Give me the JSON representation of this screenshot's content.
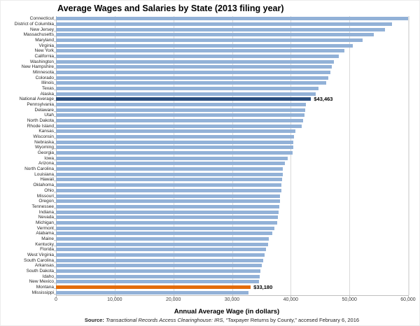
{
  "title": "Average Wages and Salaries by State (2013 filing year)",
  "chart_data": {
    "type": "bar",
    "orientation": "horizontal",
    "title": "Average Wages and Salaries by State (2013 filing year)",
    "xlabel": "Annual Average Wage (in dollars)",
    "ylabel": "",
    "xlim": [
      0,
      60000
    ],
    "grid": true,
    "gridline_color": "#d9d9d9",
    "bar_color": "#92b1d7",
    "x_ticks": [
      "0",
      "10,000",
      "20,000",
      "30,000",
      "40,000",
      "50,000",
      "60,000"
    ],
    "categories": [
      "Connecticut",
      "District of Columbia",
      "New Jersey",
      "Massachusetts",
      "Maryland",
      "Virginia",
      "New York",
      "California",
      "Washington",
      "New Hampshire",
      "Minnesota",
      "Colorado",
      "Illinois",
      "Texas",
      "Alaska",
      "National Average",
      "Pennsylvania",
      "Delaware",
      "Utah",
      "North Dakota",
      "Rhode Island",
      "Kansas",
      "Wisconsin",
      "Nebraska",
      "Wyoming",
      "Georgia",
      "Iowa",
      "Arizona",
      "North Carolina",
      "Louisiana",
      "Hawaii",
      "Oklahoma",
      "Ohio",
      "Missouri",
      "Oregon",
      "Tennessee",
      "Indiana",
      "Nevada",
      "Michigan",
      "Vermont",
      "Alabama",
      "Maine",
      "Kentucky",
      "Florida",
      "West Virginia",
      "South Carolina",
      "Arkansas",
      "South Dakota",
      "Idaho",
      "New Mexico",
      "Montana",
      "Mississippi"
    ],
    "values": [
      60000,
      57300,
      56100,
      54200,
      52300,
      50600,
      49200,
      48200,
      47400,
      47000,
      46800,
      46400,
      46100,
      44700,
      44200,
      43463,
      42600,
      42450,
      42350,
      42100,
      41900,
      40800,
      40550,
      40450,
      40400,
      40300,
      39500,
      39000,
      38700,
      38600,
      38550,
      38450,
      38400,
      38200,
      38150,
      38050,
      37900,
      37800,
      37650,
      37250,
      36900,
      36300,
      36100,
      35800,
      35500,
      35300,
      35100,
      34850,
      34750,
      34600,
      33180,
      32800
    ],
    "highlights": {
      "National Average": {
        "value": 43463,
        "value_label": "$43,463",
        "color": "#2a4e7e"
      },
      "Montana": {
        "value": 33180,
        "value_label": "$33,180",
        "color": "#e36c09"
      }
    },
    "legend": null
  },
  "x_axis_title": "Annual Average Wage (in dollars)",
  "source": {
    "prefix": "Source:",
    "italic_part": "Transactional Records Access Clearinghouse: IRS,",
    "rest": "“Taxpayer Returns by County,” accesed February 6, 2016"
  },
  "colors": {
    "default_bar": "#92b1d7",
    "national_average_bar": "#2a4e7e",
    "montana_bar": "#e36c09",
    "gridline": "#d9d9d9",
    "axis_line": "#bfbfbf"
  }
}
